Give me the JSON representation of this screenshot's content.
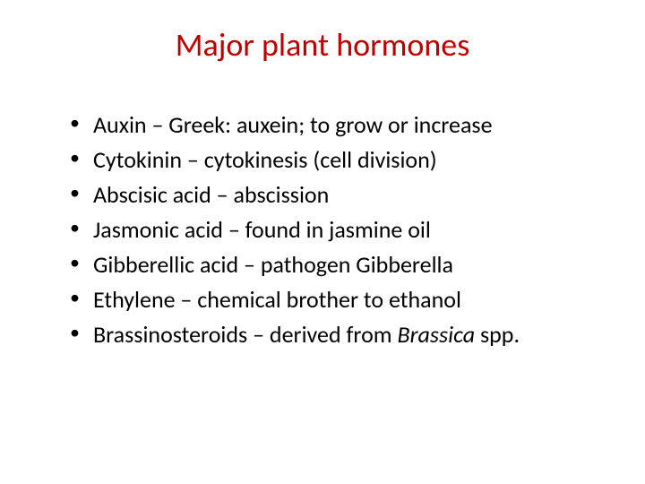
{
  "title": {
    "text": "Major plant hormones",
    "color": "#c00000",
    "fontsize": 36
  },
  "bullets": {
    "items": [
      {
        "text": "Auxin – Greek: auxein; to grow or increase",
        "has_italic": false
      },
      {
        "text": "Cytokinin – cytokinesis (cell division)",
        "has_italic": false
      },
      {
        "text": "Abscisic acid – abscission",
        "has_italic": false
      },
      {
        "text": "Jasmonic acid – found in jasmine oil",
        "has_italic": false
      },
      {
        "text": "Gibberellic acid – pathogen Gibberella",
        "has_italic": false
      },
      {
        "text": "Ethylene – chemical brother to ethanol",
        "has_italic": false
      },
      {
        "prefix": "Brassinosteroids – derived from ",
        "italic_part": "Brassica",
        "suffix": " spp.",
        "has_italic": true
      }
    ],
    "fontsize": 26,
    "text_color": "#000000"
  },
  "background_color": "#ffffff"
}
